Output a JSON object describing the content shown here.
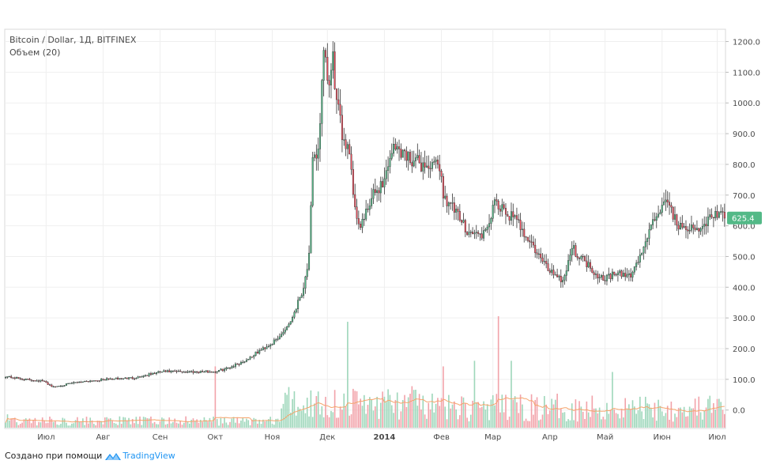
{
  "chart_data": {
    "type": "candlestick",
    "title": "Bitcoin / Dollar, 1Д, BITFINEX",
    "subtitle": "Объем (20)",
    "y_ticks": [
      "1200.0",
      "1100.0",
      "1000.0",
      "900.0",
      "800.0",
      "700.0",
      "600.0",
      "500.0",
      "400.0",
      "300.0",
      "200.0",
      "100.0",
      "0.0"
    ],
    "ylim": [
      -60,
      1240
    ],
    "last_price": "625.4",
    "x_ticks": [
      {
        "label": "Июл",
        "day": 22
      },
      {
        "label": "Авг",
        "day": 53
      },
      {
        "label": "Сен",
        "day": 84
      },
      {
        "label": "Окт",
        "day": 114
      },
      {
        "label": "Ноя",
        "day": 145
      },
      {
        "label": "Дек",
        "day": 175
      },
      {
        "label": "2014",
        "day": 206
      },
      {
        "label": "Фев",
        "day": 237
      },
      {
        "label": "Мар",
        "day": 265
      },
      {
        "label": "Апр",
        "day": 296
      },
      {
        "label": "Май",
        "day": 326
      },
      {
        "label": "Июн",
        "day": 357
      },
      {
        "label": "Июл",
        "day": 387
      }
    ],
    "close_keypoints": [
      [
        0,
        110
      ],
      [
        10,
        100
      ],
      [
        20,
        95
      ],
      [
        26,
        75
      ],
      [
        30,
        80
      ],
      [
        40,
        92
      ],
      [
        55,
        100
      ],
      [
        70,
        105
      ],
      [
        85,
        125
      ],
      [
        100,
        125
      ],
      [
        114,
        125
      ],
      [
        120,
        135
      ],
      [
        130,
        160
      ],
      [
        140,
        200
      ],
      [
        148,
        230
      ],
      [
        155,
        290
      ],
      [
        162,
        400
      ],
      [
        165,
        500
      ],
      [
        167,
        800
      ],
      [
        170,
        850
      ],
      [
        173,
        1150
      ],
      [
        176,
        1050
      ],
      [
        178,
        1140
      ],
      [
        180,
        1000
      ],
      [
        183,
        900
      ],
      [
        187,
        850
      ],
      [
        190,
        650
      ],
      [
        193,
        600
      ],
      [
        197,
        650
      ],
      [
        200,
        700
      ],
      [
        206,
        750
      ],
      [
        210,
        850
      ],
      [
        214,
        850
      ],
      [
        220,
        820
      ],
      [
        226,
        800
      ],
      [
        232,
        790
      ],
      [
        236,
        800
      ],
      [
        238,
        700
      ],
      [
        243,
        660
      ],
      [
        247,
        620
      ],
      [
        252,
        580
      ],
      [
        258,
        570
      ],
      [
        262,
        580
      ],
      [
        265,
        670
      ],
      [
        270,
        650
      ],
      [
        275,
        630
      ],
      [
        280,
        600
      ],
      [
        285,
        550
      ],
      [
        290,
        500
      ],
      [
        295,
        460
      ],
      [
        300,
        440
      ],
      [
        303,
        420
      ],
      [
        308,
        530
      ],
      [
        312,
        500
      ],
      [
        316,
        480
      ],
      [
        320,
        450
      ],
      [
        325,
        430
      ],
      [
        330,
        440
      ],
      [
        335,
        440
      ],
      [
        340,
        440
      ],
      [
        345,
        500
      ],
      [
        350,
        580
      ],
      [
        353,
        620
      ],
      [
        357,
        670
      ],
      [
        362,
        660
      ],
      [
        365,
        600
      ],
      [
        370,
        600
      ],
      [
        375,
        580
      ],
      [
        380,
        600
      ],
      [
        384,
        640
      ],
      [
        388,
        630
      ]
    ],
    "big_volume_days": [
      [
        1,
        0.12
      ],
      [
        114,
        0.55
      ],
      [
        186,
        0.95
      ],
      [
        238,
        0.55
      ],
      [
        255,
        0.6
      ],
      [
        268,
        1.0
      ],
      [
        275,
        0.6
      ],
      [
        330,
        0.5
      ]
    ]
  },
  "footer": {
    "created_with": "Создано при помощи",
    "brand": "TradingView"
  },
  "colors": {
    "up": "#53b987",
    "down": "#eb4d5c",
    "up_volume": "#9ed7bb",
    "down_volume": "#f2a3aa",
    "volume_ma": "#f5a46b",
    "grid": "#efefef",
    "axis_text": "#4a4a4a",
    "price_tag": "#53b987",
    "brand": "#2196f3"
  }
}
